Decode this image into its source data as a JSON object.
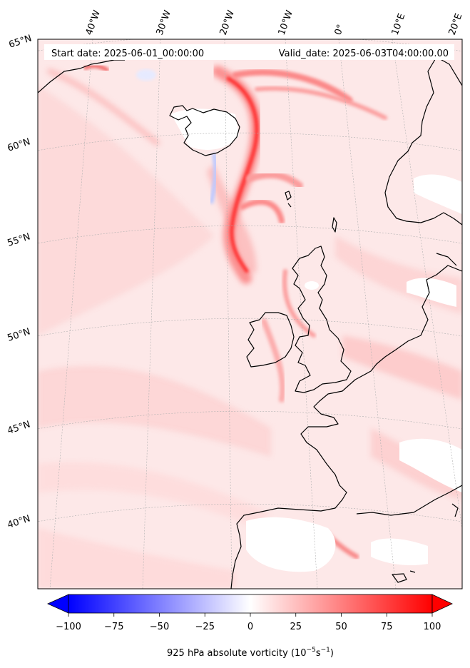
{
  "header": {
    "start_label": "Start date: 2025-06-01_00:00:00",
    "valid_label": "Valid_date: 2025-06-03T04:00:00.00"
  },
  "map": {
    "lon_labels": [
      "40°W",
      "30°W",
      "20°W",
      "10°W",
      "0°",
      "10°E",
      "20°E"
    ],
    "lat_labels": [
      "65°N",
      "60°N",
      "55°N",
      "50°N",
      "45°N",
      "40°N"
    ],
    "field_colors": {
      "background": "#fde8e8",
      "light": "#fdd2d2",
      "mid": "#fb9c9c",
      "strong": "#ff2020",
      "blue": "#dfe4ff",
      "white": "#ffffff"
    },
    "coast_color": "#000000"
  },
  "colorbar": {
    "ticks": [
      "−100",
      "−75",
      "−50",
      "−25",
      "0",
      "25",
      "50",
      "75",
      "100"
    ],
    "range": [
      -100,
      100
    ],
    "colors": {
      "min": "#0000ff",
      "mid": "#ffffff",
      "max": "#ff0000"
    },
    "label": "925 hPa absolute vorticity (10",
    "label_exp1": "−5",
    "label_mid": "s",
    "label_exp2": "−1",
    "label_end": ")"
  }
}
